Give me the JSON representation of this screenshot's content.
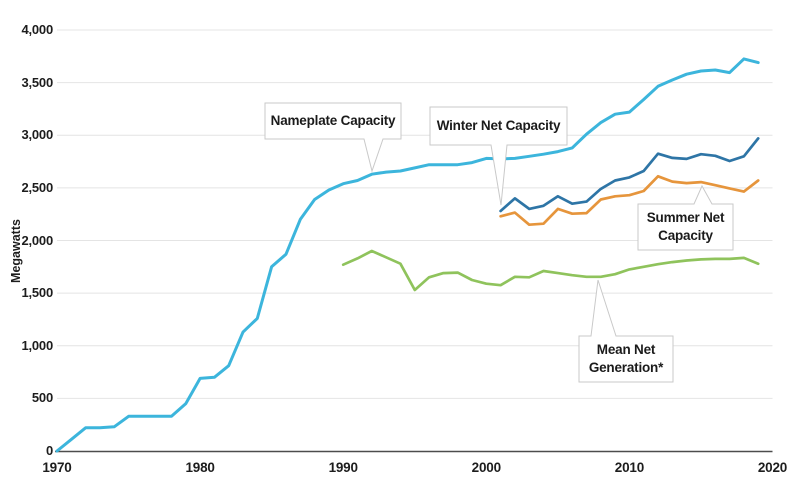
{
  "y_axis": {
    "title": "Megawatts",
    "tick_labels": [
      "0",
      "500",
      "1,000",
      "1,500",
      "2,000",
      "2,500",
      "3,000",
      "3,500",
      "4,000"
    ],
    "tick_values": [
      0,
      500,
      1000,
      1500,
      2000,
      2500,
      3000,
      3500,
      4000
    ]
  },
  "x_axis": {
    "tick_labels": [
      "1970",
      "1980",
      "1990",
      "2000",
      "2010",
      "2020"
    ],
    "tick_values": [
      1970,
      1980,
      1990,
      2000,
      2010,
      2020
    ]
  },
  "callouts": {
    "nameplate": {
      "label": "Nameplate Capacity"
    },
    "winter": {
      "label": "Winter Net Capacity"
    },
    "summer": {
      "line1": "Summer Net",
      "line2": "Capacity"
    },
    "mean": {
      "line1": "Mean Net",
      "line2": "Generation*"
    }
  },
  "colors": {
    "nameplate": "#3CB5DC",
    "winter": "#2E75A6",
    "summer": "#E6953C",
    "mean": "#8FC35C",
    "gridline": "#E4E4E4",
    "axis": "#4D4D4D",
    "callout_border": "#C9C9C9",
    "text": "#1D1D1D"
  },
  "chart_data": {
    "type": "line",
    "title": "",
    "xlabel": "",
    "ylabel": "Megawatts",
    "xlim": [
      1970,
      2020
    ],
    "ylim": [
      0,
      4000
    ],
    "grid": true,
    "legend_position": "inline-callouts",
    "annotations": [
      "Nameplate Capacity",
      "Winter Net Capacity",
      "Summer Net Capacity",
      "Mean Net Generation*"
    ],
    "series": [
      {
        "name": "Nameplate Capacity",
        "color": "#3CB5DC",
        "start_year": 1970,
        "values": [
          0,
          110,
          220,
          220,
          230,
          330,
          330,
          330,
          330,
          450,
          690,
          700,
          810,
          1130,
          1260,
          1750,
          1870,
          2200,
          2390,
          2480,
          2540,
          2570,
          2630,
          2650,
          2660,
          2690,
          2720,
          2720,
          2720,
          2740,
          2780,
          2775,
          2780,
          2800,
          2820,
          2845,
          2880,
          3010,
          3120,
          3200,
          3220,
          3340,
          3465,
          3525,
          3580,
          3610,
          3620,
          3595,
          3725,
          3690
        ]
      },
      {
        "name": "Winter Net Capacity",
        "color": "#2E75A6",
        "start_year": 2001,
        "values": [
          2280,
          2400,
          2300,
          2330,
          2420,
          2350,
          2370,
          2490,
          2570,
          2600,
          2660,
          2825,
          2785,
          2775,
          2820,
          2805,
          2755,
          2800,
          2970
        ]
      },
      {
        "name": "Summer Net Capacity",
        "color": "#E6953C",
        "start_year": 2001,
        "values": [
          2230,
          2265,
          2150,
          2160,
          2300,
          2255,
          2260,
          2390,
          2420,
          2430,
          2470,
          2610,
          2560,
          2545,
          2555,
          2525,
          2495,
          2465,
          2570
        ]
      },
      {
        "name": "Mean Net Generation*",
        "color": "#8FC35C",
        "start_year": 1990,
        "values": [
          1770,
          1830,
          1900,
          1840,
          1780,
          1530,
          1650,
          1690,
          1695,
          1625,
          1590,
          1575,
          1655,
          1650,
          1710,
          1690,
          1670,
          1655,
          1655,
          1680,
          1725,
          1750,
          1775,
          1795,
          1810,
          1820,
          1825,
          1825,
          1835,
          1780
        ]
      }
    ]
  }
}
